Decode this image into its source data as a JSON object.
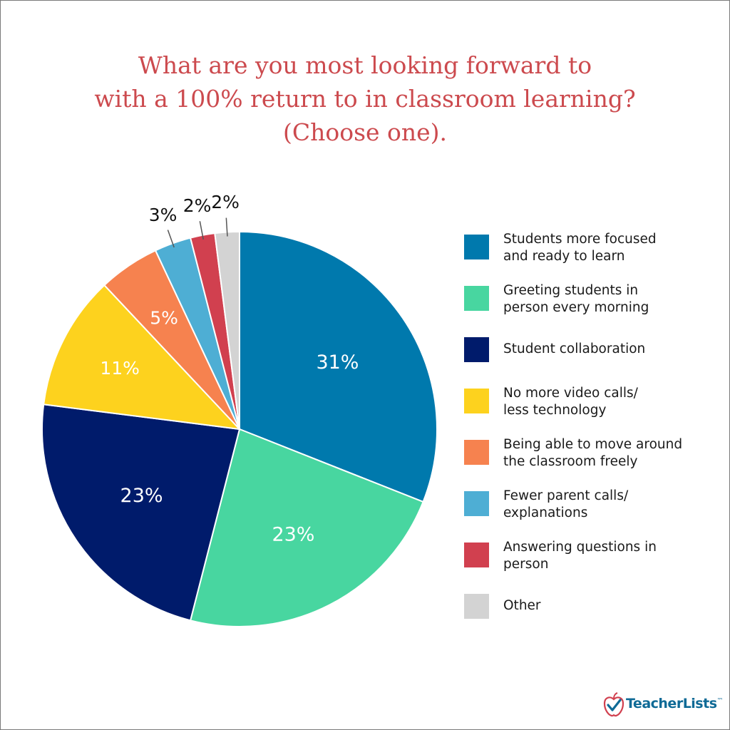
{
  "chart_data": {
    "type": "pie",
    "title_lines": [
      "What are you most looking forward to",
      "with a 100% return to in classroom learning?",
      "(Choose one)."
    ],
    "slices": [
      {
        "category": "Students more focused and ready to learn",
        "legend_lines": [
          "Students more focused",
          "and ready to learn"
        ],
        "value": 31,
        "label": "31%",
        "color": "#0079ad"
      },
      {
        "category": "Greeting students in person every morning",
        "legend_lines": [
          "Greeting students in",
          "person every morning"
        ],
        "value": 23,
        "label": "23%",
        "color": "#48d6a0"
      },
      {
        "category": "Student collaboration",
        "legend_lines": [
          "Student collaboration"
        ],
        "value": 23,
        "label": "23%",
        "color": "#001b6b"
      },
      {
        "category": "No more video calls/ less technology",
        "legend_lines": [
          "No more video calls/",
          "less technology"
        ],
        "value": 11,
        "label": "11%",
        "color": "#fdd21e"
      },
      {
        "category": "Being able to move around the classroom freely",
        "legend_lines": [
          "Being able to move around",
          "the classroom freely"
        ],
        "value": 5,
        "label": "5%",
        "color": "#f6824f"
      },
      {
        "category": "Fewer parent calls/ explanations",
        "legend_lines": [
          "Fewer parent calls/",
          "explanations"
        ],
        "value": 3,
        "label": "3%",
        "color": "#4eaed4"
      },
      {
        "category": "Answering questions in person",
        "legend_lines": [
          "Answering questions in",
          "person"
        ],
        "value": 2,
        "label": "2%",
        "color": "#d1404f"
      },
      {
        "category": "Other",
        "legend_lines": [
          "Other"
        ],
        "value": 2,
        "label": "2%",
        "color": "#d3d3d3"
      }
    ],
    "legend_position": "right",
    "title_color": "#cc4a4e"
  },
  "brand": {
    "name": "TeacherLists",
    "trademark": "™",
    "logo_icon": "apple-checkmark-icon",
    "color": "#0f6a96",
    "accent": "#d1404f"
  }
}
